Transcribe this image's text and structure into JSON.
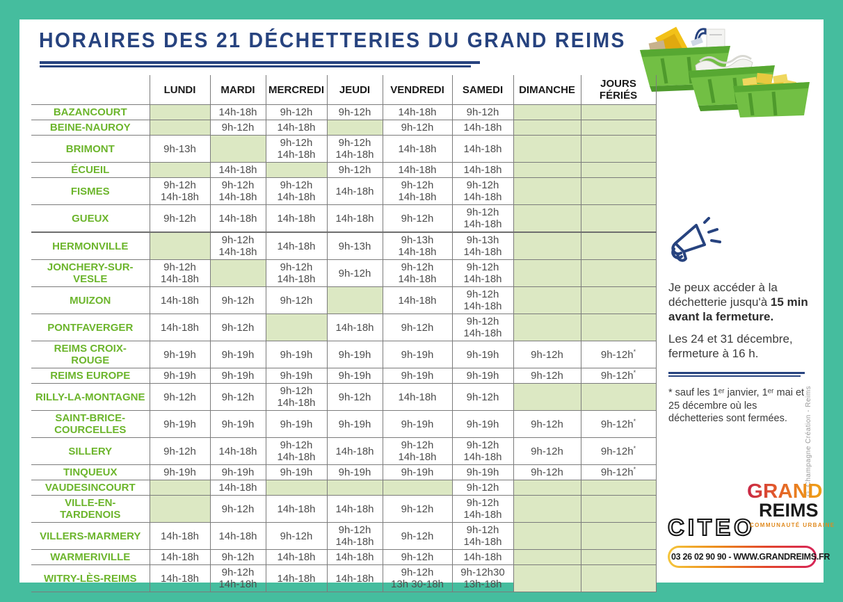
{
  "title": "HORAIRES DES 21 DÉCHETTERIES DU GRAND REIMS",
  "colors": {
    "frame_teal": "#45BD9E",
    "closed_cell_green": "#DCE8C3",
    "label_green": "#6CB52C",
    "title_blue": "#27437F",
    "border_gray": "#7B7B7B"
  },
  "table": {
    "day_headers": [
      "LUNDI",
      "MARDI",
      "MERCREDI",
      "JEUDI",
      "VENDREDI",
      "SAMEDI",
      "DIMANCHE",
      "JOURS FÉRIÉS"
    ],
    "rows": [
      {
        "name": "BAZANCOURT",
        "cells": [
          [],
          [
            "14h-18h"
          ],
          [
            "9h-12h"
          ],
          [
            "9h-12h"
          ],
          [
            "14h-18h"
          ],
          [
            "9h-12h"
          ],
          [],
          []
        ]
      },
      {
        "name": "BEINE-NAUROY",
        "cells": [
          [],
          [
            "9h-12h"
          ],
          [
            "14h-18h"
          ],
          [],
          [
            "9h-12h"
          ],
          [
            "14h-18h"
          ],
          [],
          []
        ]
      },
      {
        "name": "BRIMONT",
        "cells": [
          [
            "9h-13h"
          ],
          [],
          [
            "9h-12h",
            "14h-18h"
          ],
          [
            "9h-12h",
            "14h-18h"
          ],
          [
            "14h-18h"
          ],
          [
            "14h-18h"
          ],
          [],
          []
        ]
      },
      {
        "name": "ÉCUEIL",
        "cells": [
          [],
          [
            "14h-18h"
          ],
          [],
          [
            "9h-12h"
          ],
          [
            "14h-18h"
          ],
          [
            "14h-18h"
          ],
          [],
          []
        ]
      },
      {
        "name": "FISMES",
        "cells": [
          [
            "9h-12h",
            "14h-18h"
          ],
          [
            "9h-12h",
            "14h-18h"
          ],
          [
            "9h-12h",
            "14h-18h"
          ],
          [
            "14h-18h"
          ],
          [
            "9h-12h",
            "14h-18h"
          ],
          [
            "9h-12h",
            "14h-18h"
          ],
          [],
          []
        ]
      },
      {
        "name": "GUEUX",
        "cells": [
          [
            "9h-12h"
          ],
          [
            "14h-18h"
          ],
          [
            "14h-18h"
          ],
          [
            "14h-18h"
          ],
          [
            "9h-12h"
          ],
          [
            "9h-12h",
            "14h-18h"
          ],
          [],
          []
        ]
      },
      {
        "name": "HERMONVILLE",
        "thick_top": true,
        "cells": [
          [],
          [
            "9h-12h",
            "14h-18h"
          ],
          [
            "14h-18h"
          ],
          [
            "9h-13h"
          ],
          [
            "9h-13h",
            "14h-18h"
          ],
          [
            "9h-13h",
            "14h-18h"
          ],
          [],
          []
        ]
      },
      {
        "name": "JONCHERY-SUR-VESLE",
        "cells": [
          [
            "9h-12h",
            "14h-18h"
          ],
          [],
          [
            "9h-12h",
            "14h-18h"
          ],
          [
            "9h-12h"
          ],
          [
            "9h-12h",
            "14h-18h"
          ],
          [
            "9h-12h",
            "14h-18h"
          ],
          [],
          []
        ]
      },
      {
        "name": "MUIZON",
        "cells": [
          [
            "14h-18h"
          ],
          [
            "9h-12h"
          ],
          [
            "9h-12h"
          ],
          [],
          [
            "14h-18h"
          ],
          [
            "9h-12h",
            "14h-18h"
          ],
          [],
          []
        ]
      },
      {
        "name": "PONTFAVERGER",
        "cells": [
          [
            "14h-18h"
          ],
          [
            "9h-12h"
          ],
          [],
          [
            "14h-18h"
          ],
          [
            "9h-12h"
          ],
          [
            "9h-12h",
            "14h-18h"
          ],
          [],
          []
        ]
      },
      {
        "name": "REIMS CROIX-ROUGE",
        "cells": [
          [
            "9h-19h"
          ],
          [
            "9h-19h"
          ],
          [
            "9h-19h"
          ],
          [
            "9h-19h"
          ],
          [
            "9h-19h"
          ],
          [
            "9h-19h"
          ],
          [
            "9h-12h"
          ],
          [
            "9h-12h*"
          ]
        ]
      },
      {
        "name": "REIMS EUROPE",
        "cells": [
          [
            "9h-19h"
          ],
          [
            "9h-19h"
          ],
          [
            "9h-19h"
          ],
          [
            "9h-19h"
          ],
          [
            "9h-19h"
          ],
          [
            "9h-19h"
          ],
          [
            "9h-12h"
          ],
          [
            "9h-12h*"
          ]
        ]
      },
      {
        "name": "RILLY-LA-MONTAGNE",
        "cells": [
          [
            "9h-12h"
          ],
          [
            "9h-12h"
          ],
          [
            "9h-12h",
            "14h-18h"
          ],
          [
            "9h-12h"
          ],
          [
            "14h-18h"
          ],
          [
            "9h-12h"
          ],
          [],
          []
        ]
      },
      {
        "name": "SAINT-BRICE-COURCELLES",
        "cells": [
          [
            "9h-19h"
          ],
          [
            "9h-19h"
          ],
          [
            "9h-19h"
          ],
          [
            "9h-19h"
          ],
          [
            "9h-19h"
          ],
          [
            "9h-19h"
          ],
          [
            "9h-12h"
          ],
          [
            "9h-12h*"
          ]
        ]
      },
      {
        "name": "SILLERY",
        "cells": [
          [
            "9h-12h"
          ],
          [
            "14h-18h"
          ],
          [
            "9h-12h",
            "14h-18h"
          ],
          [
            "14h-18h"
          ],
          [
            "9h-12h",
            "14h-18h"
          ],
          [
            "9h-12h",
            "14h-18h"
          ],
          [
            "9h-12h"
          ],
          [
            "9h-12h*"
          ]
        ]
      },
      {
        "name": "TINQUEUX",
        "cells": [
          [
            "9h-19h"
          ],
          [
            "9h-19h"
          ],
          [
            "9h-19h"
          ],
          [
            "9h-19h"
          ],
          [
            "9h-19h"
          ],
          [
            "9h-19h"
          ],
          [
            "9h-12h"
          ],
          [
            "9h-12h*"
          ]
        ]
      },
      {
        "name": "VAUDESINCOURT",
        "cells": [
          [],
          [
            "14h-18h"
          ],
          [],
          [],
          [],
          [
            "9h-12h"
          ],
          [],
          []
        ]
      },
      {
        "name": "VILLE-EN-TARDENOIS",
        "cells": [
          [],
          [
            "9h-12h"
          ],
          [
            "14h-18h"
          ],
          [
            "14h-18h"
          ],
          [
            "9h-12h"
          ],
          [
            "9h-12h",
            "14h-18h"
          ],
          [],
          []
        ]
      },
      {
        "name": "VILLERS-MARMERY",
        "cells": [
          [
            "14h-18h"
          ],
          [
            "14h-18h"
          ],
          [
            "9h-12h"
          ],
          [
            "9h-12h",
            "14h-18h"
          ],
          [
            "9h-12h"
          ],
          [
            "9h-12h",
            "14h-18h"
          ],
          [],
          []
        ]
      },
      {
        "name": "WARMERIVILLE",
        "cells": [
          [
            "14h-18h"
          ],
          [
            "9h-12h"
          ],
          [
            "14h-18h"
          ],
          [
            "14h-18h"
          ],
          [
            "9h-12h"
          ],
          [
            "14h-18h"
          ],
          [],
          []
        ]
      },
      {
        "name": "WITRY-LÈS-REIMS",
        "cells": [
          [
            "14h-18h"
          ],
          [
            "9h-12h",
            "14h-18h"
          ],
          [
            "14h-18h"
          ],
          [
            "14h-18h"
          ],
          [
            "9h-12h",
            "13h 30-18h"
          ],
          [
            "9h-12h30",
            "13h-18h"
          ],
          [],
          []
        ]
      }
    ]
  },
  "sidebar": {
    "access_notice_normal": "Je peux accéder à la déchetterie jusqu'à",
    "access_notice_bold": "15 min avant la fermeture.",
    "december_notice": "Les 24 et 31 décembre, fermeture à 16 h.",
    "footnote": "* sauf les 1ᵉʳ janvier, 1ᵉʳ mai et 25 décembre où les déchetteries sont fermées."
  },
  "footer": {
    "citeo_label": "CITEO",
    "grand_label": "GRAND",
    "reims_label": "REIMS",
    "communaute_label": "COMMUNAUTÉ URBAINE",
    "contact_label": "03 26 02 90 90 - WWW.GRANDREIMS.FR"
  },
  "credit": "© Champagne Création - Reims"
}
